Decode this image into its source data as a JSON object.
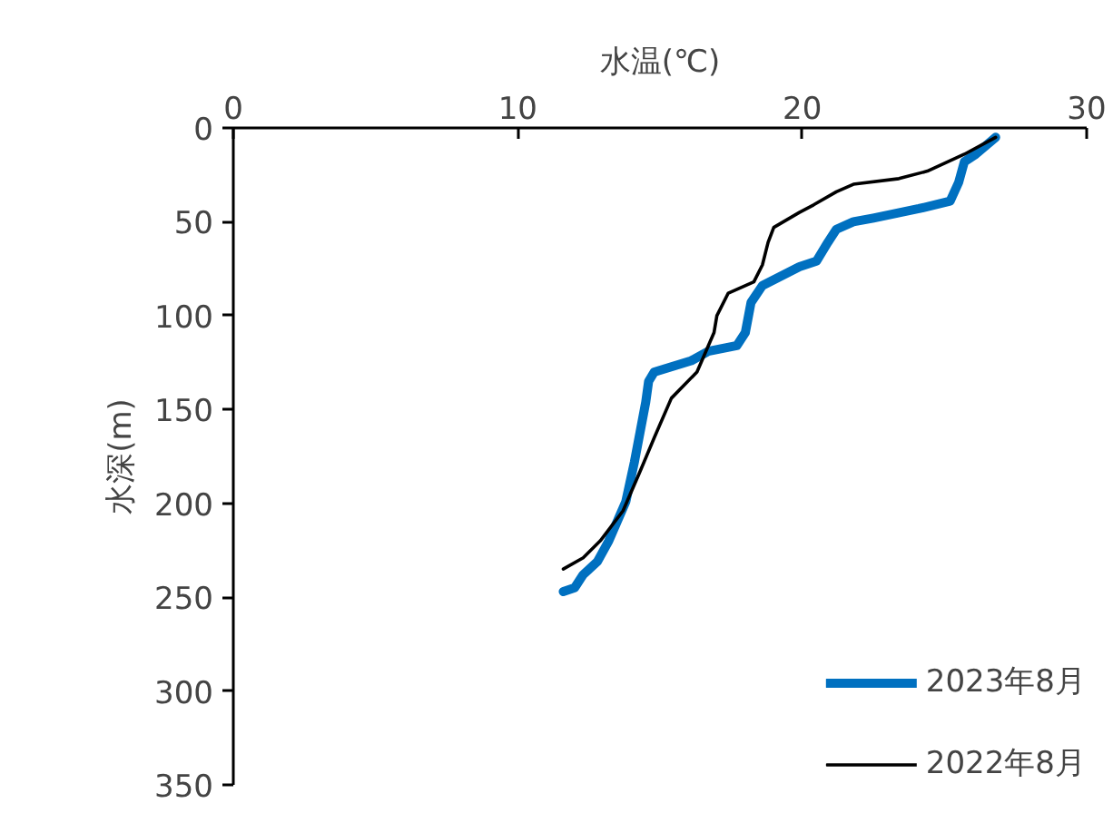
{
  "chart_data": {
    "type": "line",
    "xlabel": "水温(℃)",
    "ylabel": "水深(m)",
    "xlim": [
      0,
      30
    ],
    "xticks": [
      0,
      10,
      20,
      30
    ],
    "ylim": [
      350,
      0
    ],
    "yticks": [
      0,
      50,
      100,
      150,
      200,
      250,
      300,
      350
    ],
    "grid": false,
    "legend": "bottom right",
    "marker": "none",
    "line_style": "solid",
    "series": [
      {
        "name": "2023年8月",
        "color": "#0070c0",
        "x": [
          26.8,
          26.1,
          25.7,
          25.5,
          25.2,
          24.1,
          22.5,
          21.8,
          21.2,
          20.9,
          20.5,
          19.9,
          18.6,
          18.2,
          18.0,
          17.7,
          16.7,
          16.1,
          14.8,
          14.6,
          14.5,
          14.3,
          14.1,
          13.8,
          13.2,
          12.8,
          12.3,
          12.0,
          11.6
        ],
        "values": [
          5,
          14,
          18,
          29,
          39,
          43,
          48,
          50,
          54,
          61,
          71,
          74,
          84,
          93,
          109,
          116,
          119,
          124,
          130,
          135,
          146,
          162,
          178,
          199,
          220,
          231,
          238,
          245,
          247
        ]
      },
      {
        "name": "2022年8月",
        "color": "#000000",
        "x": [
          26.8,
          25.7,
          24.4,
          23.4,
          21.8,
          21.2,
          20.4,
          19.9,
          19.0,
          18.8,
          18.6,
          18.3,
          17.4,
          17.0,
          16.9,
          16.3,
          15.4,
          14.8,
          14.3,
          13.7,
          12.9,
          12.3,
          11.6
        ],
        "values": [
          5,
          14,
          23,
          27,
          30,
          34,
          41,
          45,
          53,
          61,
          73,
          82,
          88,
          100,
          109,
          130,
          144,
          165,
          183,
          204,
          220,
          229,
          235
        ]
      }
    ]
  }
}
